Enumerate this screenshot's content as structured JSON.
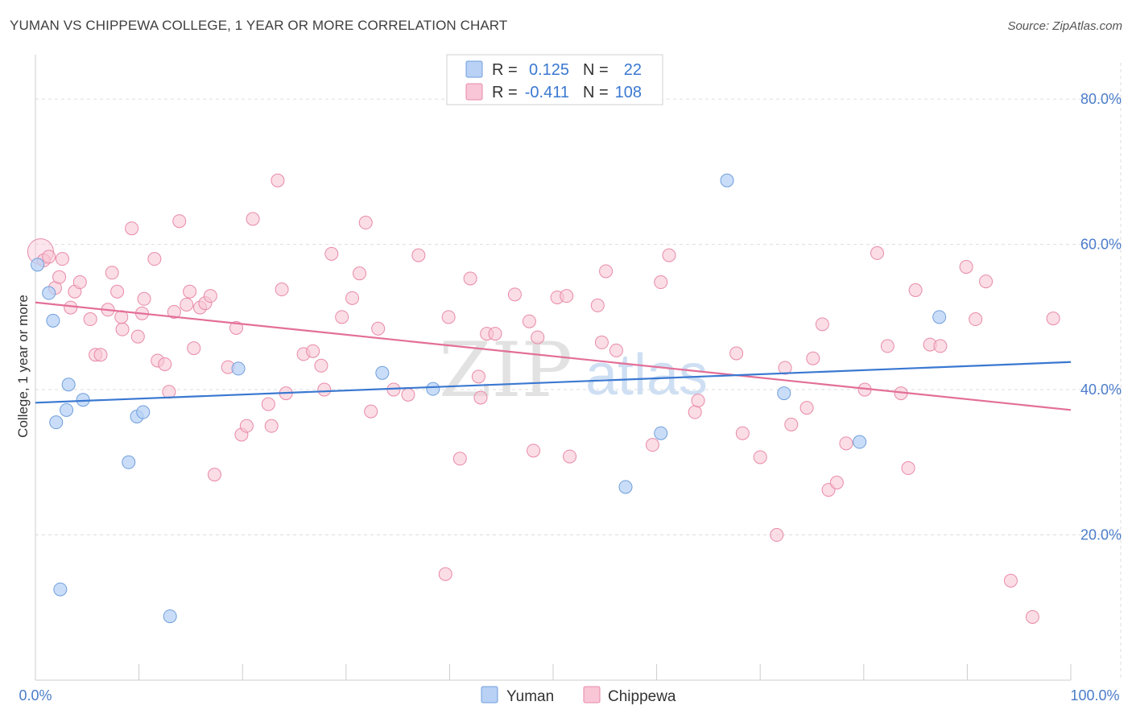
{
  "title": "YUMAN VS CHIPPEWA COLLEGE, 1 YEAR OR MORE CORRELATION CHART",
  "source": "Source: ZipAtlas.com",
  "watermark": {
    "zip": "ZIP",
    "atlas": "atlas"
  },
  "colors": {
    "yuman_fill": "#b8d1f5",
    "yuman_stroke": "#6f9fdc",
    "yuman_line": "#3a78d1",
    "chippewa_fill": "#f8c6d6",
    "chippewa_stroke": "#e88aa8",
    "chippewa_line": "#e36f98",
    "tick_label": "#4a7cc9",
    "grid": "#dddddd"
  },
  "legend": {
    "rows": [
      {
        "r_label": "R =",
        "r_value": "0.125",
        "n_label": "N =",
        "n_value": "22"
      },
      {
        "r_label": "R =",
        "r_value": "-0.411",
        "n_label": "N =",
        "n_value": "108"
      }
    ]
  },
  "chart_data": {
    "type": "scatter",
    "title": "YUMAN VS CHIPPEWA COLLEGE, 1 YEAR OR MORE CORRELATION CHART",
    "ylabel": "College, 1 year or more",
    "xlim": [
      0,
      100
    ],
    "ylim": [
      0,
      85
    ],
    "x_tick_labels": [
      "0.0%",
      "100.0%"
    ],
    "y_ticks": [
      20,
      40,
      60,
      80
    ],
    "y_tick_labels": [
      "20.0%",
      "40.0%",
      "60.0%",
      "80.0%"
    ],
    "grid": true,
    "legend_position": "top-center",
    "series": [
      {
        "name": "Yuman",
        "r": 0.125,
        "n": 22,
        "trend": [
          [
            0,
            38.2
          ],
          [
            100,
            43.8
          ]
        ],
        "points": [
          [
            0.2,
            57.2
          ],
          [
            1.3,
            53.3
          ],
          [
            1.7,
            49.5
          ],
          [
            2.0,
            35.5
          ],
          [
            2.4,
            12.5
          ],
          [
            3.0,
            37.2
          ],
          [
            3.2,
            40.7
          ],
          [
            4.6,
            38.6
          ],
          [
            9.0,
            30.0
          ],
          [
            9.8,
            36.3
          ],
          [
            10.4,
            36.9
          ],
          [
            13.0,
            8.8
          ],
          [
            19.6,
            42.9
          ],
          [
            33.5,
            42.3
          ],
          [
            38.4,
            40.1
          ],
          [
            57.0,
            26.6
          ],
          [
            56.8,
            84.0
          ],
          [
            60.4,
            34.0
          ],
          [
            66.8,
            68.8
          ],
          [
            72.3,
            39.5
          ],
          [
            79.6,
            32.8
          ],
          [
            87.3,
            50.0
          ]
        ]
      },
      {
        "name": "Chippewa",
        "r": -0.411,
        "n": 108,
        "trend": [
          [
            0,
            52.0
          ],
          [
            100,
            37.2
          ]
        ],
        "points": [
          [
            0.5,
            59.0
          ],
          [
            0.8,
            57.8
          ],
          [
            1.3,
            58.3
          ],
          [
            1.9,
            54.0
          ],
          [
            2.3,
            55.5
          ],
          [
            2.6,
            58.0
          ],
          [
            3.4,
            51.3
          ],
          [
            3.8,
            53.5
          ],
          [
            4.3,
            54.8
          ],
          [
            5.3,
            49.7
          ],
          [
            5.8,
            44.8
          ],
          [
            6.3,
            44.8
          ],
          [
            7.0,
            51.0
          ],
          [
            7.4,
            56.1
          ],
          [
            7.9,
            53.5
          ],
          [
            8.4,
            48.3
          ],
          [
            8.3,
            50.0
          ],
          [
            9.3,
            62.2
          ],
          [
            9.9,
            47.3
          ],
          [
            10.3,
            50.5
          ],
          [
            10.5,
            52.5
          ],
          [
            11.5,
            58.0
          ],
          [
            11.8,
            44.0
          ],
          [
            12.5,
            43.5
          ],
          [
            12.9,
            39.7
          ],
          [
            13.4,
            50.7
          ],
          [
            13.9,
            63.2
          ],
          [
            14.6,
            51.7
          ],
          [
            14.9,
            53.5
          ],
          [
            15.3,
            45.7
          ],
          [
            15.9,
            51.3
          ],
          [
            16.4,
            51.9
          ],
          [
            16.9,
            52.9
          ],
          [
            17.3,
            28.3
          ],
          [
            18.6,
            43.1
          ],
          [
            19.4,
            48.5
          ],
          [
            19.9,
            33.8
          ],
          [
            20.4,
            35.0
          ],
          [
            21.0,
            63.5
          ],
          [
            22.5,
            38.0
          ],
          [
            22.8,
            35.0
          ],
          [
            23.4,
            68.8
          ],
          [
            23.8,
            53.8
          ],
          [
            24.2,
            39.5
          ],
          [
            25.9,
            44.9
          ],
          [
            26.8,
            45.3
          ],
          [
            27.6,
            43.3
          ],
          [
            27.9,
            40.0
          ],
          [
            28.6,
            58.7
          ],
          [
            29.6,
            50.0
          ],
          [
            30.6,
            52.6
          ],
          [
            31.3,
            56.0
          ],
          [
            31.9,
            63.0
          ],
          [
            32.4,
            37.0
          ],
          [
            33.1,
            48.4
          ],
          [
            34.6,
            40.0
          ],
          [
            36.0,
            39.3
          ],
          [
            37.0,
            58.5
          ],
          [
            39.6,
            14.6
          ],
          [
            39.9,
            50.0
          ],
          [
            41.0,
            30.5
          ],
          [
            42.0,
            55.3
          ],
          [
            42.8,
            41.8
          ],
          [
            43.0,
            38.9
          ],
          [
            43.6,
            47.7
          ],
          [
            44.4,
            47.7
          ],
          [
            46.3,
            53.1
          ],
          [
            47.7,
            49.4
          ],
          [
            48.1,
            31.6
          ],
          [
            48.5,
            47.2
          ],
          [
            50.4,
            52.7
          ],
          [
            51.3,
            52.9
          ],
          [
            51.6,
            30.8
          ],
          [
            54.3,
            51.6
          ],
          [
            54.7,
            46.5
          ],
          [
            55.1,
            56.3
          ],
          [
            56.1,
            45.4
          ],
          [
            59.6,
            32.4
          ],
          [
            60.4,
            54.8
          ],
          [
            61.2,
            58.5
          ],
          [
            63.7,
            36.9
          ],
          [
            64.0,
            38.5
          ],
          [
            67.7,
            45.0
          ],
          [
            68.3,
            34.0
          ],
          [
            70.0,
            30.7
          ],
          [
            71.6,
            20.0
          ],
          [
            72.4,
            43.0
          ],
          [
            73.0,
            35.2
          ],
          [
            74.5,
            37.5
          ],
          [
            75.1,
            44.3
          ],
          [
            76.0,
            49.0
          ],
          [
            76.6,
            26.2
          ],
          [
            77.4,
            27.2
          ],
          [
            78.3,
            32.6
          ],
          [
            80.1,
            40.0
          ],
          [
            81.3,
            58.8
          ],
          [
            82.3,
            46.0
          ],
          [
            83.6,
            39.5
          ],
          [
            84.3,
            29.2
          ],
          [
            85.0,
            53.7
          ],
          [
            86.4,
            46.2
          ],
          [
            87.4,
            46.0
          ],
          [
            89.9,
            56.9
          ],
          [
            90.8,
            49.7
          ],
          [
            91.8,
            54.9
          ],
          [
            94.2,
            13.7
          ],
          [
            96.3,
            8.7
          ],
          [
            98.3,
            49.8
          ]
        ]
      }
    ]
  }
}
